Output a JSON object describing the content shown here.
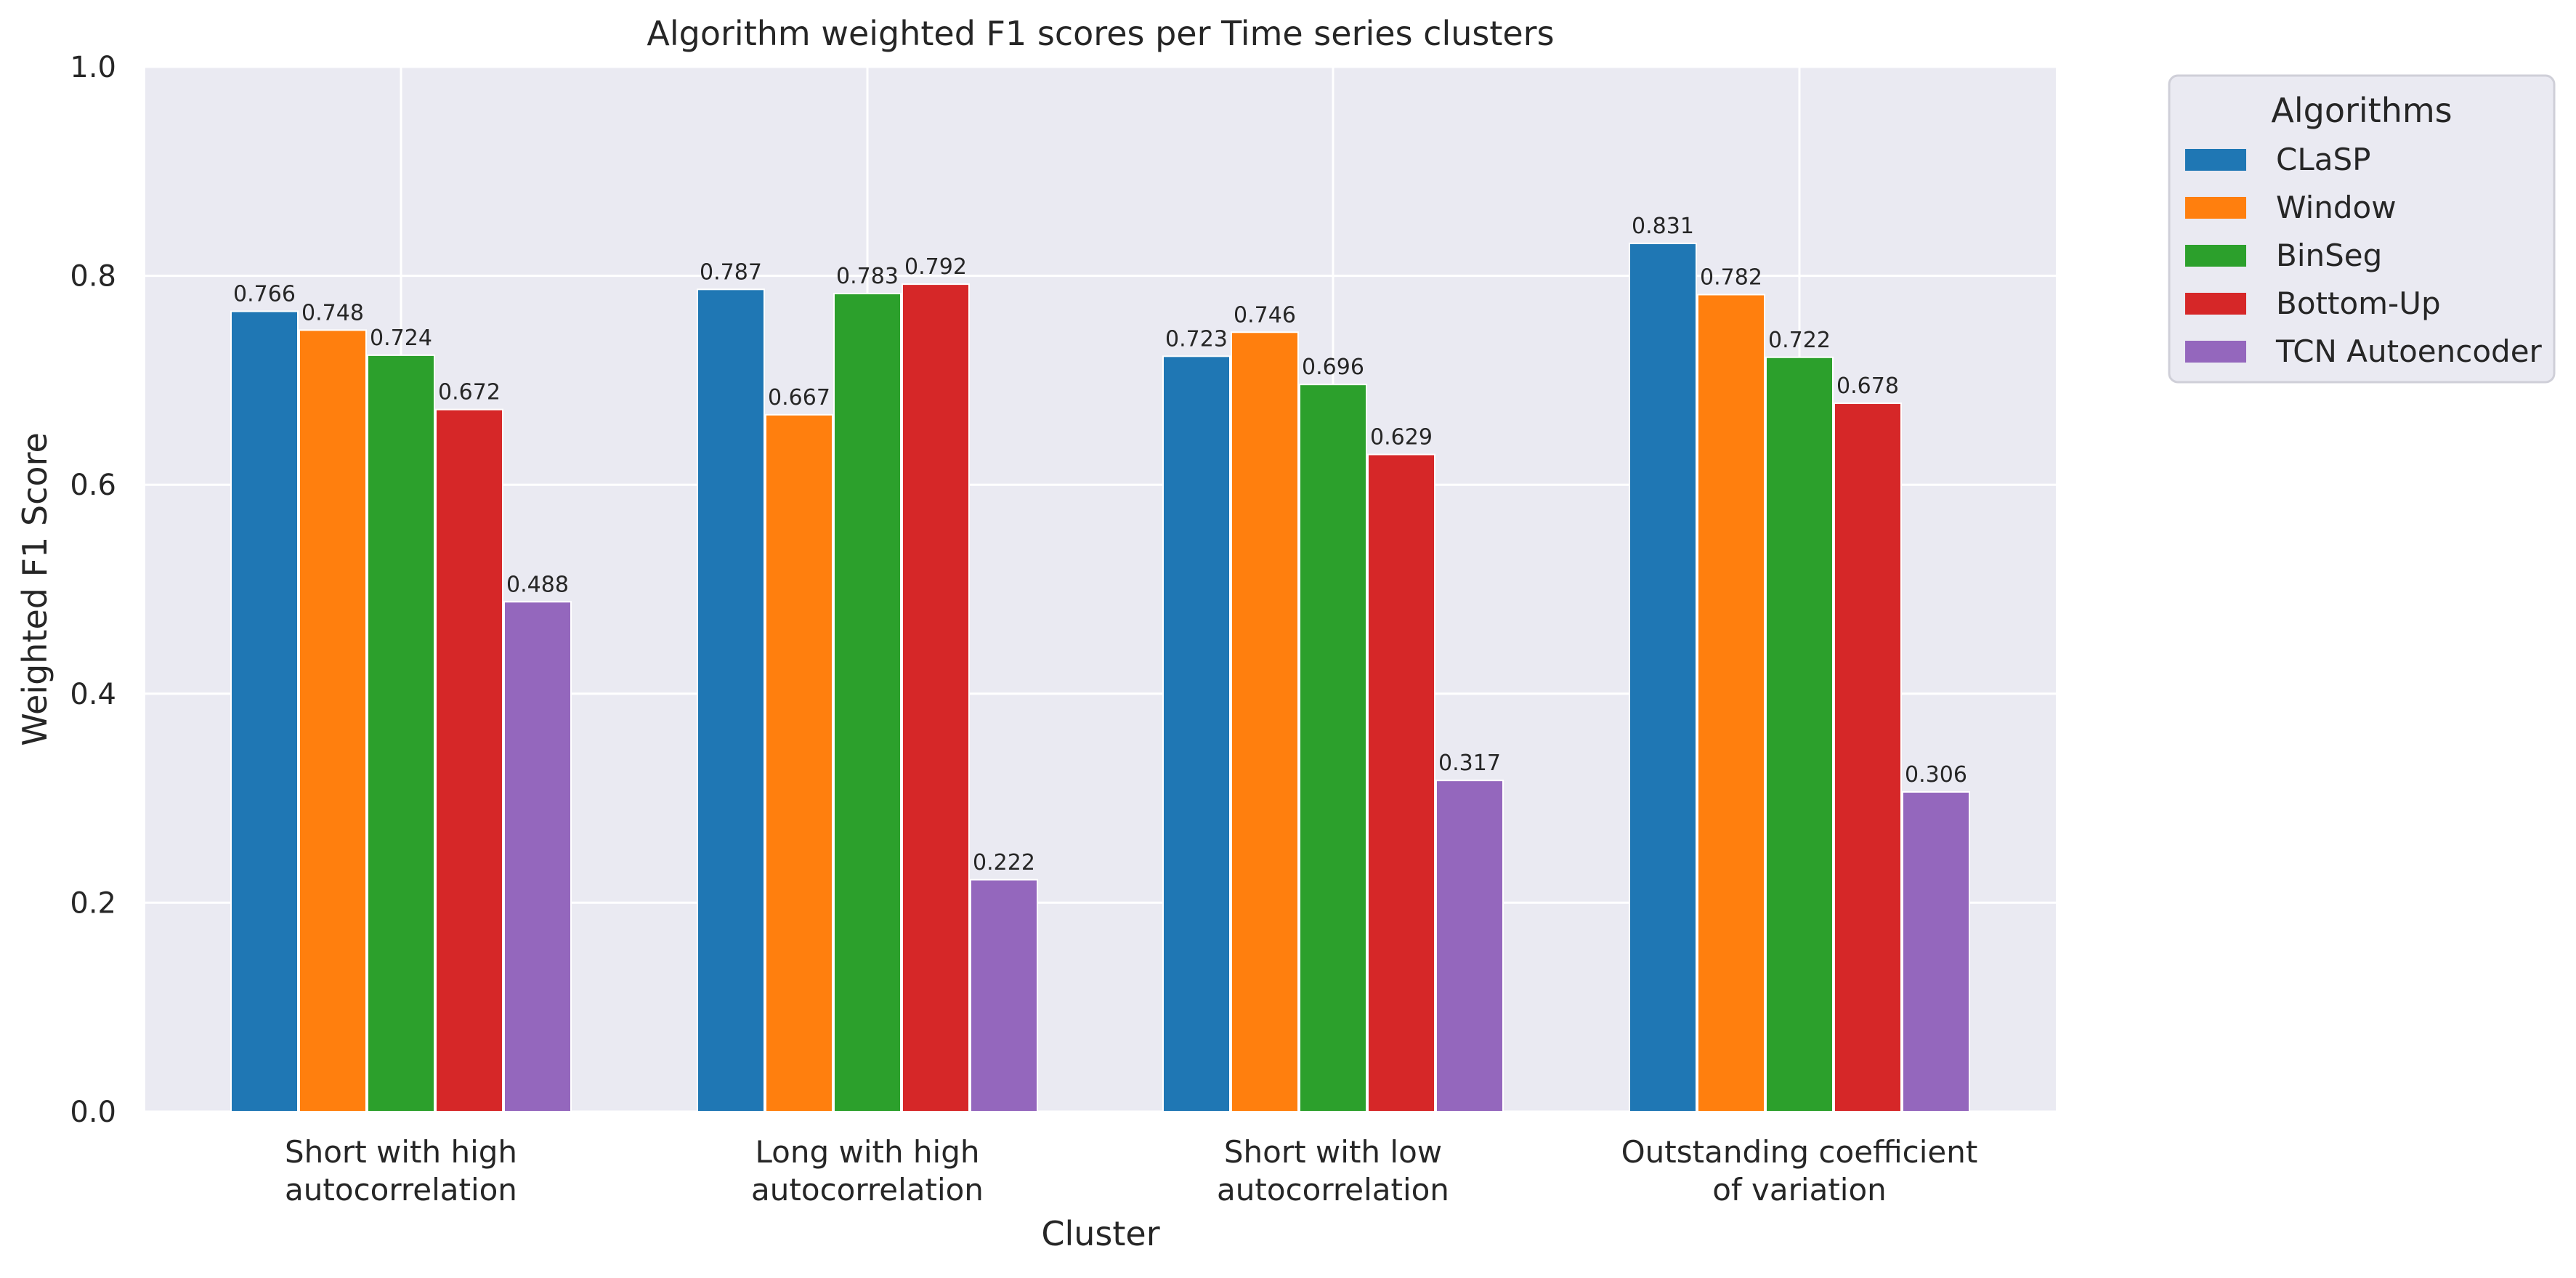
{
  "chart_data": {
    "type": "bar",
    "title": "Algorithm weighted F1 scores per Time series clusters",
    "xlabel": "Cluster",
    "ylabel": "Weighted F1 Score",
    "ylim": [
      0,
      1.0
    ],
    "yticks": [
      "0.0",
      "0.2",
      "0.4",
      "0.6",
      "0.8",
      "1.0"
    ],
    "grid": true,
    "legend_title": "Algorithms",
    "legend_placement": "outside-top-right",
    "categories": [
      [
        "Short with high",
        "autocorrelation"
      ],
      [
        "Long with high",
        "autocorrelation"
      ],
      [
        "Short with low",
        "autocorrelation"
      ],
      [
        "Outstanding coefficient",
        "of variation"
      ]
    ],
    "series": [
      {
        "name": "CLaSP",
        "color": "#1f77b4",
        "values": [
          0.766,
          0.787,
          0.723,
          0.831
        ],
        "labels": [
          "0.766",
          "0.787",
          "0.723",
          "0.831"
        ]
      },
      {
        "name": "Window",
        "color": "#ff7f0e",
        "values": [
          0.748,
          0.667,
          0.746,
          0.782
        ],
        "labels": [
          "0.748",
          "0.667",
          "0.746",
          "0.782"
        ]
      },
      {
        "name": "BinSeg",
        "color": "#2ca02c",
        "values": [
          0.724,
          0.783,
          0.696,
          0.722
        ],
        "labels": [
          "0.724",
          "0.783",
          "0.696",
          "0.722"
        ]
      },
      {
        "name": "Bottom-Up",
        "color": "#d62728",
        "values": [
          0.672,
          0.792,
          0.629,
          0.678
        ],
        "labels": [
          "0.672",
          "0.792",
          "0.629",
          "0.678"
        ]
      },
      {
        "name": "TCN Autoencoder",
        "color": "#9467bd",
        "values": [
          0.488,
          0.222,
          0.317,
          0.306
        ],
        "labels": [
          "0.488",
          "0.222",
          "0.317",
          "0.306"
        ]
      }
    ]
  }
}
